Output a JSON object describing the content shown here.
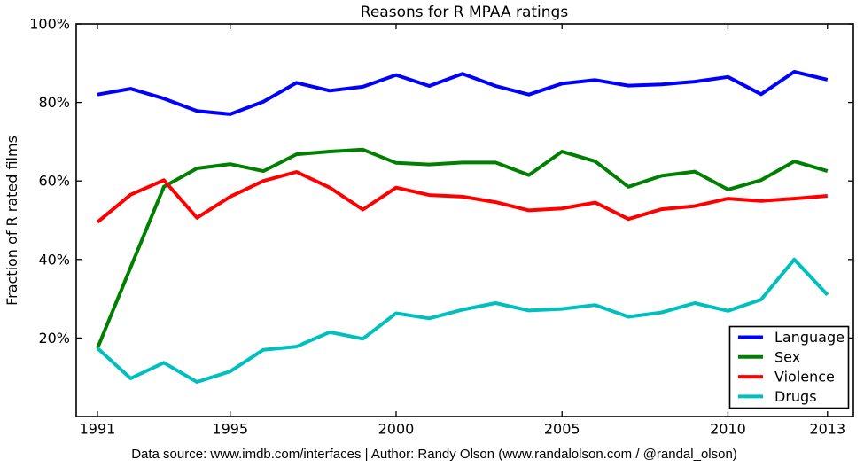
{
  "title": "Reasons for R MPAA ratings",
  "ylabel": "Fraction of R rated films",
  "footer": "Data source: www.imdb.com/interfaces | Author: Randy Olson (www.randalolson.com / @randal_olson)",
  "colors": {
    "background": "#ffffff",
    "axis": "#000000",
    "language": "#0000ff",
    "sex": "#008000",
    "violence": "#ff0000",
    "drugs": "#00bfbf"
  },
  "chart_data": {
    "type": "line",
    "title": "Reasons for R MPAA ratings",
    "xlabel": "",
    "ylabel": "Fraction of R rated films",
    "grid": false,
    "legend_position": "lower right",
    "xlim": [
      1990.36,
      2013.78
    ],
    "ylim": [
      0,
      100
    ],
    "x": [
      1991,
      1992,
      1993,
      1994,
      1995,
      1996,
      1997,
      1998,
      1999,
      2000,
      2001,
      2002,
      2003,
      2004,
      2005,
      2006,
      2007,
      2008,
      2009,
      2010,
      2011,
      2012,
      2013
    ],
    "series": [
      {
        "name": "Language",
        "color": "#0000ff",
        "values": [
          82.0,
          83.5,
          81.0,
          77.8,
          77.0,
          80.2,
          85.0,
          83.0,
          84.0,
          87.0,
          84.2,
          87.3,
          84.2,
          82.0,
          84.8,
          85.7,
          84.3,
          84.6,
          85.3,
          86.5,
          82.1,
          87.8,
          85.8
        ]
      },
      {
        "name": "Sex",
        "color": "#008000",
        "values": [
          17.4,
          38.0,
          58.5,
          63.2,
          64.3,
          62.5,
          66.8,
          67.5,
          68.0,
          64.6,
          64.2,
          64.7,
          64.7,
          61.5,
          67.5,
          65.0,
          58.5,
          61.3,
          62.4,
          57.8,
          60.2,
          65.0,
          62.5
        ]
      },
      {
        "name": "Violence",
        "color": "#ff0000",
        "values": [
          49.5,
          56.5,
          60.2,
          50.6,
          56.0,
          60.0,
          62.3,
          58.3,
          52.7,
          58.3,
          56.4,
          56.0,
          54.6,
          52.5,
          53.0,
          54.5,
          50.3,
          52.8,
          53.6,
          55.5,
          54.9,
          55.5,
          56.2
        ]
      },
      {
        "name": "Drugs",
        "color": "#00bfbf",
        "values": [
          17.4,
          9.7,
          13.7,
          8.8,
          11.5,
          17.0,
          17.8,
          21.5,
          19.8,
          26.3,
          25.0,
          27.2,
          28.9,
          27.0,
          27.4,
          28.4,
          25.4,
          26.5,
          28.9,
          26.9,
          29.8,
          40.0,
          31.0
        ]
      }
    ],
    "xticks": [
      {
        "value": 1991,
        "label": "1991"
      },
      {
        "value": 1995,
        "label": "1995"
      },
      {
        "value": 2000,
        "label": "2000"
      },
      {
        "value": 2005,
        "label": "2005"
      },
      {
        "value": 2010,
        "label": "2010"
      },
      {
        "value": 2013,
        "label": "2013"
      }
    ],
    "yticks": [
      {
        "value": 20,
        "label": "20%"
      },
      {
        "value": 40,
        "label": "40%"
      },
      {
        "value": 60,
        "label": "60%"
      },
      {
        "value": 80,
        "label": "80%"
      },
      {
        "value": 100,
        "label": "100%"
      }
    ]
  }
}
